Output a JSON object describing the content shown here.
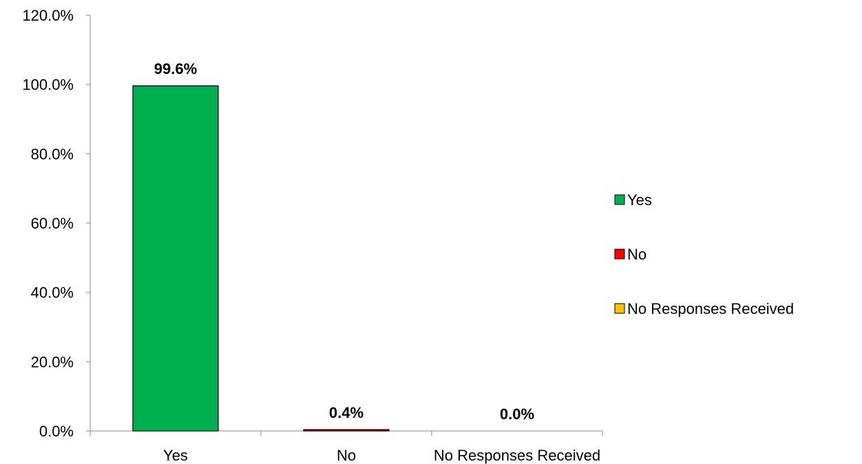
{
  "chart_data": {
    "type": "bar",
    "categories": [
      "Yes",
      "No",
      "No Responses Received"
    ],
    "values": [
      99.6,
      0.4,
      0.0
    ],
    "data_labels": [
      "99.6%",
      "0.4%",
      "0.0%"
    ],
    "colors": [
      "#00b050",
      "#ff0000",
      "#ffc000"
    ],
    "ylim": [
      0,
      120
    ],
    "yticks": [
      0,
      20,
      40,
      60,
      80,
      100,
      120
    ],
    "ytick_labels": [
      "0.0%",
      "20.0%",
      "40.0%",
      "60.0%",
      "80.0%",
      "100.0%",
      "120.0%"
    ],
    "grid": false,
    "legend_position": "right",
    "legend": [
      "Yes",
      "No",
      "No Responses Received"
    ],
    "title": "",
    "xlabel": "",
    "ylabel": ""
  }
}
